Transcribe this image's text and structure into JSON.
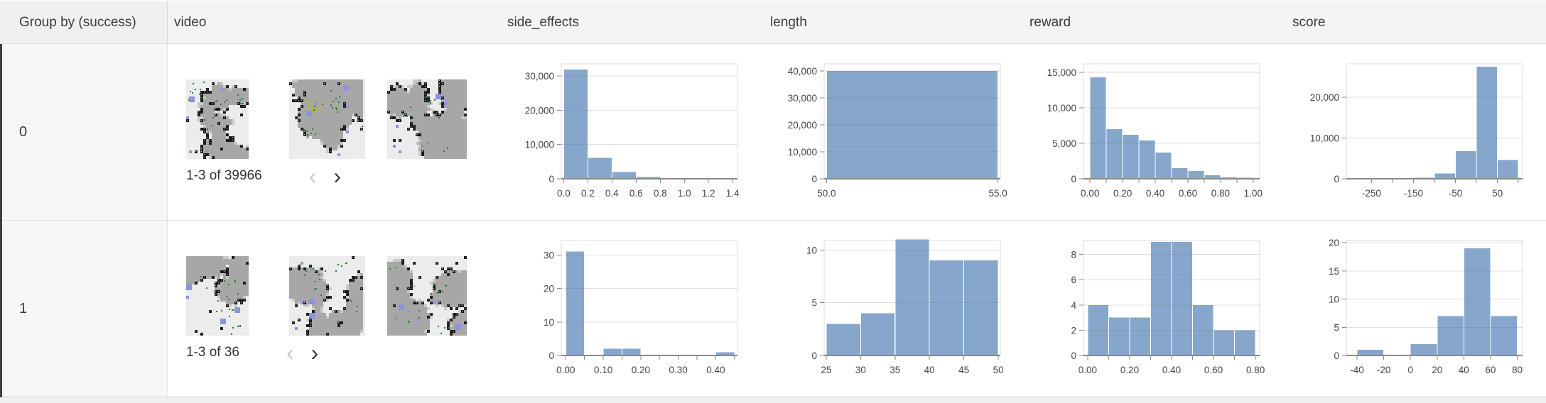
{
  "header": {
    "columns": [
      {
        "label": "Group by (success)"
      },
      {
        "label": "video"
      },
      {
        "label": "side_effects"
      },
      {
        "label": "length"
      },
      {
        "label": "reward"
      },
      {
        "label": "score"
      }
    ]
  },
  "colors": {
    "bar": "#87a6cb",
    "grid": "#dddddd",
    "grid_over": "rgba(110,110,110,0.22)",
    "axis": "#8a8a8a",
    "tick_text": "#454545",
    "thumb_palette": {
      "bg": "#ececec",
      "wall": "#a7a7a7",
      "mid": "#c9c9c9",
      "black": "#1c1c1c",
      "green": "#2e7d32",
      "blue": "#8e93de",
      "yellow": "#bdb530"
    }
  },
  "rows": [
    {
      "group_value": "0",
      "video": {
        "pagination": "1-3 of 39966",
        "prev_icon": "‹",
        "next_icon": "›",
        "thumbnails": [
          {
            "kind": "grid-world-frame",
            "seed": 11,
            "yellow": false
          },
          {
            "kind": "grid-world-frame",
            "seed": 12,
            "yellow": true
          },
          {
            "kind": "grid-world-frame",
            "seed": 13,
            "yellow": false
          }
        ]
      }
    },
    {
      "group_value": "1",
      "video": {
        "pagination": "1-3 of 36",
        "prev_icon": "‹",
        "next_icon": "›",
        "thumbnails": [
          {
            "kind": "grid-world-frame",
            "seed": 21,
            "yellow": false
          },
          {
            "kind": "grid-world-frame",
            "seed": 22,
            "yellow": false
          },
          {
            "kind": "grid-world-frame",
            "seed": 23,
            "yellow": false
          }
        ]
      }
    }
  ],
  "chart_data": {
    "r0": {
      "side_effects": {
        "type": "histogram",
        "bin_start": 0,
        "bin_width": 0.2,
        "counts": [
          31800,
          6100,
          1950,
          500,
          150,
          60,
          30
        ],
        "xlim": [
          -0.02,
          1.44
        ],
        "ylim": [
          0,
          33500
        ],
        "xticks": [
          0,
          0.2,
          0.4,
          0.6,
          0.8,
          1.0,
          1.2,
          1.4
        ],
        "xtick_labels": [
          "0.0",
          "0.2",
          "0.4",
          "0.6",
          "0.8",
          "1.0",
          "1.2",
          "1.4"
        ],
        "yticks": [
          0,
          10000,
          20000,
          30000
        ],
        "ytick_labels": [
          "0",
          "10,000",
          "20,000",
          "30,000"
        ]
      },
      "length": {
        "type": "histogram",
        "bin_start": 50,
        "bin_width": 5,
        "counts": [
          40000
        ],
        "xlim": [
          49.93,
          55.07
        ],
        "ylim": [
          0,
          42600
        ],
        "xticks": [
          50,
          55
        ],
        "xtick_labels": [
          "50.0",
          "55.0"
        ],
        "yticks": [
          0,
          10000,
          20000,
          30000,
          40000
        ],
        "ytick_labels": [
          "0",
          "10,000",
          "20,000",
          "30,000",
          "40,000"
        ]
      },
      "reward": {
        "type": "histogram",
        "bin_start": 0,
        "bin_width": 0.1,
        "counts": [
          14300,
          7000,
          6200,
          5400,
          3700,
          1500,
          1100,
          500,
          200,
          150
        ],
        "xlim": [
          -0.04,
          1.04
        ],
        "ylim": [
          0,
          16200
        ],
        "xticks": [
          0,
          0.1,
          0.2,
          0.3,
          0.4,
          0.5,
          0.6,
          0.7,
          0.8,
          0.9,
          1.0
        ],
        "xtick_labels": [
          "0.00",
          "",
          "0.20",
          "",
          "0.40",
          "",
          "0.60",
          "",
          "0.80",
          "",
          "1.00"
        ],
        "yticks": [
          0,
          5000,
          10000,
          15000
        ],
        "ytick_labels": [
          "0",
          "5,000",
          "10,000",
          "15,000"
        ]
      },
      "score": {
        "type": "histogram",
        "bin_start": -300,
        "bin_width": 50,
        "counts": [
          0,
          0,
          50,
          250,
          1300,
          6800,
          27500,
          4600
        ],
        "xlim": [
          -310,
          110
        ],
        "ylim": [
          0,
          28200
        ],
        "xticks": [
          -250,
          -200,
          -150,
          -100,
          -50,
          0,
          50,
          100
        ],
        "xtick_labels": [
          "-250",
          "",
          "-150",
          "",
          "-50",
          "",
          "50",
          ""
        ],
        "yticks": [
          0,
          10000,
          20000
        ],
        "ytick_labels": [
          "0",
          "10,000",
          "20,000"
        ]
      }
    },
    "r1": {
      "side_effects": {
        "type": "histogram",
        "bin_start": 0,
        "bin_width": 0.05,
        "counts": [
          31,
          0,
          2,
          2,
          0,
          0,
          0,
          0,
          1
        ],
        "xlim": [
          -0.012,
          0.458
        ],
        "ylim": [
          0,
          34.3
        ],
        "xticks": [
          0,
          0.05,
          0.1,
          0.15,
          0.2,
          0.25,
          0.3,
          0.35,
          0.4,
          0.45
        ],
        "xtick_labels": [
          "0.00",
          "",
          "0.10",
          "",
          "0.20",
          "",
          "0.30",
          "",
          "0.40",
          ""
        ],
        "yticks": [
          0,
          10,
          20,
          30
        ],
        "ytick_labels": [
          "0",
          "10",
          "20",
          "30"
        ]
      },
      "length": {
        "type": "histogram",
        "bin_start": 25,
        "bin_width": 5,
        "counts": [
          3,
          4,
          11,
          9,
          9
        ],
        "xlim": [
          24.7,
          50.3
        ],
        "ylim": [
          0,
          10.9
        ],
        "xticks": [
          25,
          30,
          35,
          40,
          45,
          50
        ],
        "xtick_labels": [
          "25",
          "30",
          "35",
          "40",
          "45",
          "50"
        ],
        "yticks": [
          0,
          5,
          10
        ],
        "ytick_labels": [
          "0",
          "5",
          "10"
        ]
      },
      "reward": {
        "type": "histogram",
        "bin_start": 0,
        "bin_width": 0.1,
        "counts": [
          4,
          3,
          3,
          9,
          9,
          4,
          2,
          2
        ],
        "xlim": [
          -0.02,
          0.82
        ],
        "ylim": [
          0,
          9.1
        ],
        "xticks": [
          0,
          0.1,
          0.2,
          0.3,
          0.4,
          0.5,
          0.6,
          0.7,
          0.8
        ],
        "xtick_labels": [
          "0.00",
          "",
          "0.20",
          "",
          "0.40",
          "",
          "0.60",
          "",
          "0.80"
        ],
        "yticks": [
          0,
          2,
          4,
          6,
          8
        ],
        "ytick_labels": [
          "0",
          "2",
          "4",
          "6",
          "8"
        ]
      },
      "score": {
        "type": "histogram",
        "bin_start": -40,
        "bin_width": 20,
        "counts": [
          1,
          0,
          2,
          7,
          19,
          7
        ],
        "xlim": [
          -48,
          84
        ],
        "ylim": [
          0,
          20.4
        ],
        "xticks": [
          -40,
          -20,
          0,
          20,
          40,
          60,
          80
        ],
        "xtick_labels": [
          "-40",
          "-20",
          "0",
          "20",
          "40",
          "60",
          "80"
        ],
        "yticks": [
          0,
          5,
          10,
          15,
          20
        ],
        "ytick_labels": [
          "0",
          "5",
          "10",
          "15",
          "20"
        ]
      }
    }
  }
}
